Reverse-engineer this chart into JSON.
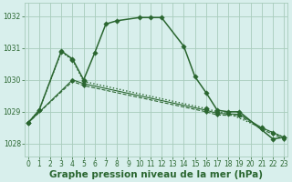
{
  "bg_color": "#d8efec",
  "grid_color": "#a8ccbb",
  "line_color": "#2a6630",
  "xlabel": "Graphe pression niveau de la mer (hPa)",
  "ylim": [
    1027.6,
    1032.4
  ],
  "xlim": [
    -0.3,
    23.3
  ],
  "yticks": [
    1028,
    1029,
    1030,
    1031,
    1032
  ],
  "xticks": [
    0,
    1,
    2,
    3,
    4,
    5,
    6,
    7,
    8,
    9,
    10,
    11,
    12,
    13,
    14,
    15,
    16,
    17,
    18,
    19,
    20,
    21,
    22,
    23
  ],
  "tick_fontsize": 5.5,
  "label_fontsize": 7.5,
  "series": [
    {
      "x": [
        0,
        1,
        3,
        4,
        5,
        6,
        7,
        8,
        10,
        11,
        12,
        14,
        15,
        16,
        17,
        18,
        19,
        22,
        23
      ],
      "y": [
        1028.65,
        1029.05,
        1030.9,
        1030.65,
        1030.0,
        1030.85,
        1031.75,
        1031.85,
        1031.95,
        1031.95,
        1031.95,
        1031.05,
        1030.1,
        1029.6,
        1029.05,
        1029.0,
        1029.0,
        1028.15,
        1028.2
      ],
      "linestyle": "-",
      "linewidth": 1.1,
      "markersize": 2.8
    },
    {
      "x": [
        0,
        1,
        3,
        4,
        5,
        16,
        17,
        18,
        21,
        22,
        23
      ],
      "y": [
        1028.65,
        1029.05,
        1030.88,
        1030.62,
        1029.95,
        1029.1,
        1029.0,
        1028.95,
        1028.5,
        1028.35,
        1028.2
      ],
      "linestyle": ":",
      "linewidth": 1.0,
      "markersize": 2.8
    },
    {
      "x": [
        0,
        4,
        5,
        16,
        17,
        19,
        21,
        23
      ],
      "y": [
        1028.65,
        1030.0,
        1029.88,
        1029.05,
        1028.95,
        1028.92,
        1028.5,
        1028.2
      ],
      "linestyle": "-",
      "linewidth": 0.8,
      "markersize": 2.5
    },
    {
      "x": [
        0,
        4,
        5,
        16,
        17,
        19,
        21,
        22,
        23
      ],
      "y": [
        1028.65,
        1029.95,
        1029.82,
        1029.0,
        1028.9,
        1028.88,
        1028.45,
        1028.3,
        1028.15
      ],
      "linestyle": "--",
      "linewidth": 0.8,
      "markersize": 2.2
    }
  ]
}
